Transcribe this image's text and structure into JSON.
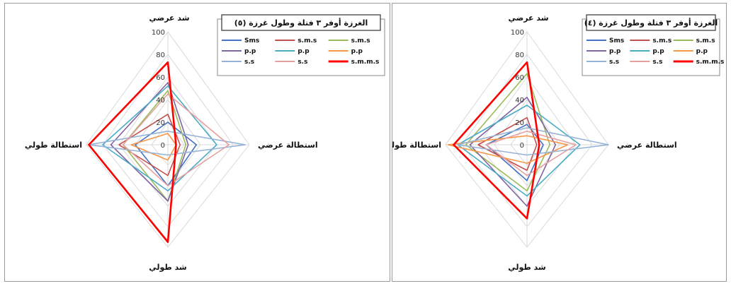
{
  "chart_data": [
    {
      "type": "radar",
      "panel": "right",
      "title": "الغرزة أوفر ٣ فتلة وطول غرزة (٥)",
      "axes": [
        "شد عرضي",
        "استطالة عرضي",
        "شد طولي",
        "استطالة طولي"
      ],
      "ticks": [
        "0",
        "20",
        "40",
        "60",
        "80",
        "100"
      ],
      "rmax": 100,
      "series": [
        {
          "name": "Sms",
          "color": "#4472c4",
          "values": [
            20,
            35,
            40,
            40
          ]
        },
        {
          "name": "s.m.s",
          "color": "#c0504d",
          "values": [
            27,
            15,
            30,
            60
          ]
        },
        {
          "name": "s.m.s",
          "color": "#9bbb59",
          "values": [
            48,
            22,
            55,
            55
          ]
        },
        {
          "name": "p.p",
          "color": "#8064a2",
          "values": [
            55,
            25,
            55,
            70
          ]
        },
        {
          "name": "p.p",
          "color": "#4bacc6",
          "values": [
            52,
            60,
            45,
            80
          ]
        },
        {
          "name": "p.p",
          "color": "#f79646",
          "values": [
            10,
            10,
            15,
            45
          ]
        },
        {
          "name": "s.s",
          "color": "#95b3d7",
          "values": [
            12,
            95,
            10,
            97
          ]
        },
        {
          "name": "s.s",
          "color": "#e6a0a0",
          "values": [
            45,
            75,
            40,
            55
          ]
        },
        {
          "name": "s.m.m.s",
          "color": "#ff0000",
          "values": [
            73,
            10,
            95,
            97
          ]
        }
      ]
    },
    {
      "type": "radar",
      "panel": "left",
      "title": "الغرزة أوفر ٣ فتلة وطول غرزة (٤)",
      "axes": [
        "شد عرضي",
        "استطالة عرضي",
        "شد طولي",
        "استطالة طولي"
      ],
      "ticks": [
        "0",
        "20",
        "40",
        "60",
        "80",
        "100"
      ],
      "rmax": 100,
      "series": [
        {
          "name": "Sms",
          "color": "#4472c4",
          "values": [
            18,
            20,
            35,
            50
          ]
        },
        {
          "name": "s.m.s",
          "color": "#c0504d",
          "values": [
            24,
            12,
            25,
            60
          ]
        },
        {
          "name": "s.m.s",
          "color": "#9bbb59",
          "values": [
            63,
            28,
            45,
            75
          ]
        },
        {
          "name": "p.p",
          "color": "#8064a2",
          "values": [
            42,
            35,
            60,
            70
          ]
        },
        {
          "name": "p.p",
          "color": "#4bacc6",
          "values": [
            35,
            65,
            50,
            85
          ]
        },
        {
          "name": "p.p",
          "color": "#f79646",
          "values": [
            8,
            50,
            18,
            97
          ]
        },
        {
          "name": "s.s",
          "color": "#95b3d7",
          "values": [
            15,
            100,
            10,
            85
          ]
        },
        {
          "name": "s.s",
          "color": "#e6a0a0",
          "values": [
            12,
            60,
            30,
            50
          ]
        },
        {
          "name": "s.m.m.s",
          "color": "#ff0000",
          "values": [
            73,
            15,
            72,
            90
          ]
        }
      ]
    }
  ]
}
